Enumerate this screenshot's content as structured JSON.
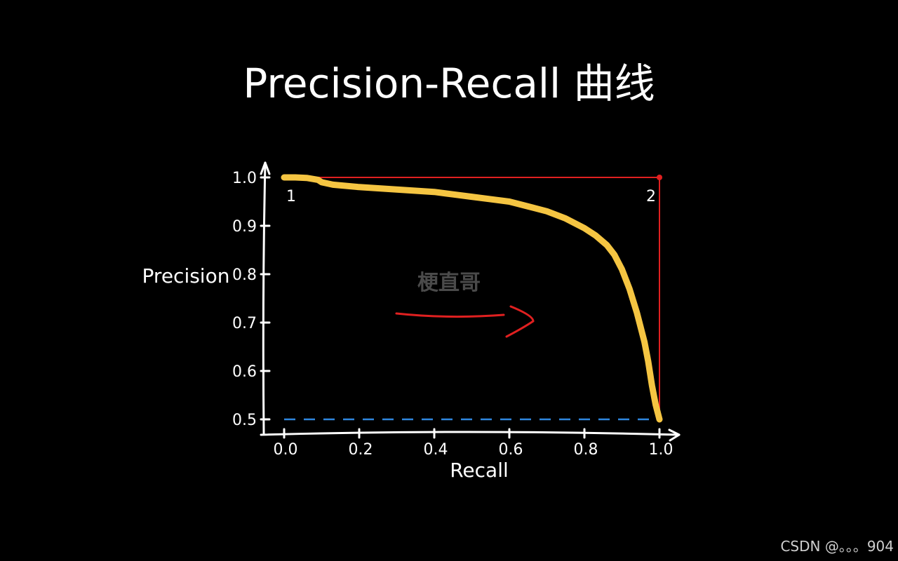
{
  "page": {
    "title": "Precision-Recall 曲线",
    "footer": "CSDN @。。。904",
    "watermark": "梗直哥"
  },
  "colors": {
    "background": "#000000",
    "axis": "#ffffff",
    "pr_curve": "#f5c542",
    "baseline": "#2e86de",
    "ideal_line": "#e02020",
    "arrow": "#e02020",
    "watermark": "#4a4a4a"
  },
  "chart_data": {
    "type": "line",
    "xlabel": "Recall",
    "ylabel": "Precision",
    "xlim": [
      0.0,
      1.0
    ],
    "ylim": [
      0.5,
      1.0
    ],
    "x_ticks": [
      "0.0",
      "0.2",
      "0.4",
      "0.6",
      "0.8",
      "1.0"
    ],
    "y_ticks": [
      "0.5",
      "0.6",
      "0.7",
      "0.8",
      "0.9",
      "1.0"
    ],
    "grid": false,
    "legend": "none",
    "annotations": [
      {
        "text": "1",
        "x": 0.0,
        "y": 1.0
      },
      {
        "text": "2",
        "x": 1.0,
        "y": 1.0
      }
    ],
    "series": [
      {
        "style": "pr-curve",
        "points": [
          [
            0.0,
            1.0
          ],
          [
            0.03,
            1.0
          ],
          [
            0.06,
            0.999
          ],
          [
            0.09,
            0.995
          ],
          [
            0.1,
            0.99
          ],
          [
            0.13,
            0.985
          ],
          [
            0.2,
            0.98
          ],
          [
            0.3,
            0.975
          ],
          [
            0.4,
            0.97
          ],
          [
            0.45,
            0.965
          ],
          [
            0.5,
            0.96
          ],
          [
            0.55,
            0.955
          ],
          [
            0.6,
            0.95
          ],
          [
            0.65,
            0.94
          ],
          [
            0.7,
            0.93
          ],
          [
            0.75,
            0.915
          ],
          [
            0.8,
            0.895
          ],
          [
            0.83,
            0.88
          ],
          [
            0.86,
            0.86
          ],
          [
            0.88,
            0.84
          ],
          [
            0.9,
            0.81
          ],
          [
            0.92,
            0.77
          ],
          [
            0.94,
            0.72
          ],
          [
            0.96,
            0.66
          ],
          [
            0.97,
            0.62
          ],
          [
            0.98,
            0.57
          ],
          [
            0.99,
            0.53
          ],
          [
            1.0,
            0.5
          ]
        ]
      },
      {
        "style": "baseline",
        "points": [
          [
            0.0,
            0.5
          ],
          [
            1.0,
            0.5
          ]
        ]
      },
      {
        "style": "ideal",
        "points": [
          [
            0.0,
            1.0
          ],
          [
            1.0,
            1.0
          ],
          [
            1.0,
            0.5
          ]
        ]
      }
    ]
  }
}
